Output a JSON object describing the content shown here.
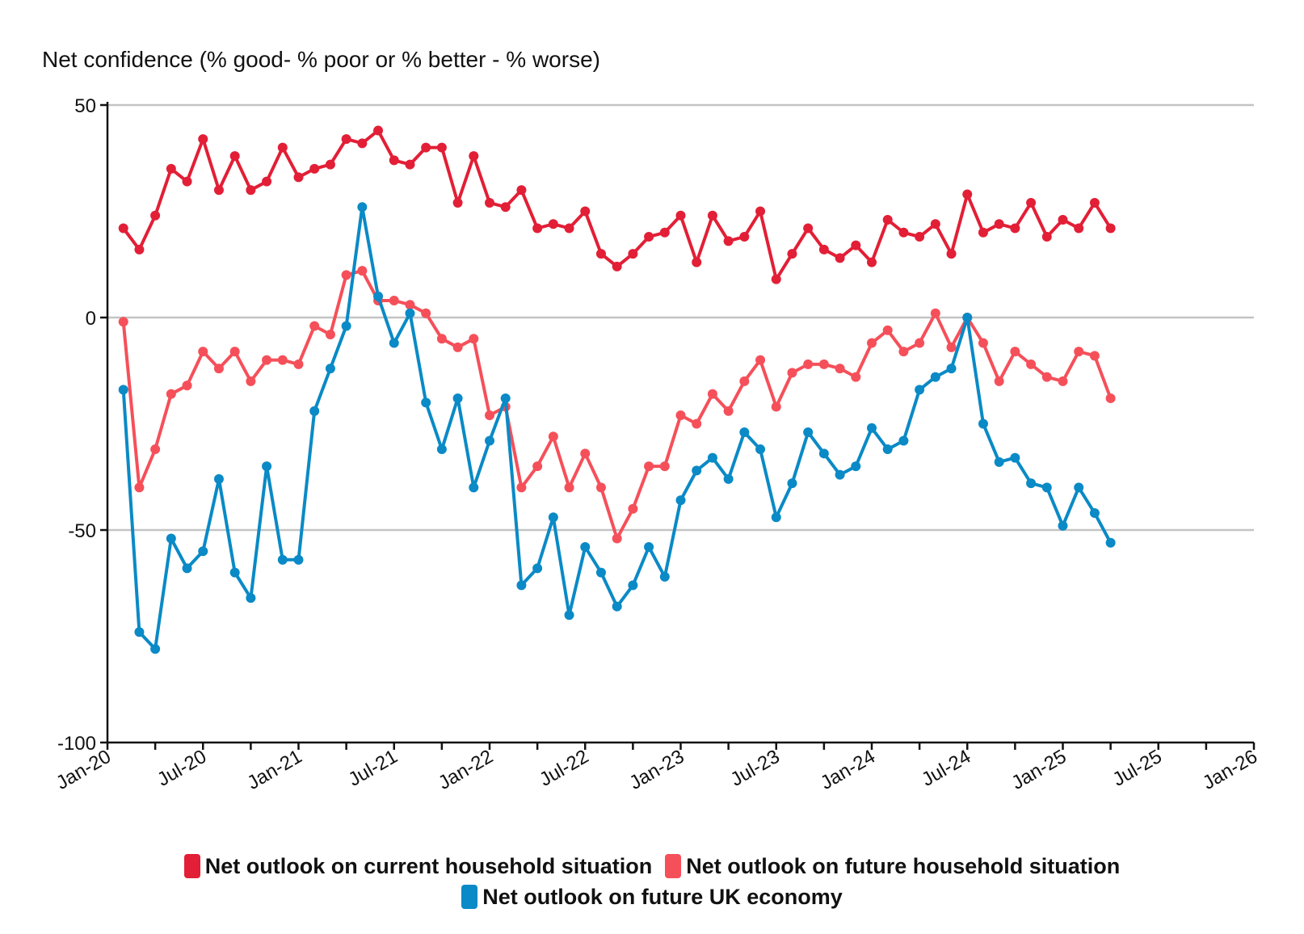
{
  "chart_data": {
    "type": "line",
    "title": "",
    "ylabel": "Net confidence (% good- % poor or % better - % worse)",
    "xlabel": "",
    "ylim": [
      -100,
      50
    ],
    "yticks": [
      50,
      0,
      -50,
      -100
    ],
    "xlim": [
      "2020-01",
      "2026-01"
    ],
    "xticks": [
      "Jan-20",
      "Jul-20",
      "Jan-21",
      "Jul-21",
      "Jan-22",
      "Jul-22",
      "Jan-23",
      "Jul-23",
      "Jan-24",
      "Jul-24",
      "Jan-25",
      "Jul-25",
      "Jan-26"
    ],
    "grid": "horizontal",
    "legend_position": "bottom",
    "x": [
      "2020-02",
      "2020-03",
      "2020-04",
      "2020-05",
      "2020-06",
      "2020-07",
      "2020-08",
      "2020-09",
      "2020-10",
      "2020-11",
      "2020-12",
      "2021-01",
      "2021-02",
      "2021-03",
      "2021-04",
      "2021-05",
      "2021-06",
      "2021-07",
      "2021-08",
      "2021-09",
      "2021-10",
      "2021-11",
      "2021-12",
      "2022-01",
      "2022-02",
      "2022-03",
      "2022-04",
      "2022-05",
      "2022-06",
      "2022-07",
      "2022-08",
      "2022-09",
      "2022-10",
      "2022-11",
      "2022-12",
      "2023-01",
      "2023-02",
      "2023-03",
      "2023-04",
      "2023-05",
      "2023-06",
      "2023-07",
      "2023-08",
      "2023-09",
      "2023-10",
      "2023-11",
      "2023-12",
      "2024-01",
      "2024-02",
      "2024-03",
      "2024-04",
      "2024-05",
      "2024-06",
      "2024-07",
      "2024-08",
      "2024-09",
      "2024-10",
      "2024-11",
      "2024-12",
      "2025-01",
      "2025-02",
      "2025-03",
      "2025-04"
    ],
    "series": [
      {
        "name": "Net outlook on current household situation",
        "color": "#e21f36",
        "values": [
          21,
          16,
          24,
          35,
          32,
          42,
          30,
          38,
          30,
          32,
          40,
          33,
          35,
          36,
          42,
          41,
          44,
          37,
          36,
          40,
          40,
          27,
          38,
          27,
          26,
          30,
          21,
          22,
          21,
          25,
          15,
          12,
          15,
          19,
          20,
          24,
          13,
          24,
          18,
          19,
          25,
          9,
          15,
          21,
          16,
          14,
          17,
          13,
          23,
          20,
          19,
          22,
          15,
          29,
          20,
          22,
          21,
          27,
          19,
          23,
          21,
          27,
          21
        ]
      },
      {
        "name": "Net outlook on future household situation",
        "color": "#f5505a",
        "values": [
          -1,
          -40,
          -31,
          -18,
          -16,
          -8,
          -12,
          -8,
          -15,
          -10,
          -10,
          -11,
          -2,
          -4,
          10,
          11,
          4,
          4,
          3,
          1,
          -5,
          -7,
          -5,
          -23,
          -21,
          -40,
          -35,
          -28,
          -40,
          -32,
          -40,
          -52,
          -45,
          -35,
          -35,
          -23,
          -25,
          -18,
          -22,
          -15,
          -10,
          -21,
          -13,
          -11,
          -11,
          -12,
          -14,
          -6,
          -3,
          -8,
          -6,
          1,
          -7,
          0,
          -6,
          -15,
          -8,
          -11,
          -14,
          -15,
          -8,
          -9,
          -19
        ]
      },
      {
        "name": "Net outlook on future UK economy",
        "color": "#0a8ac6",
        "values": [
          -17,
          -74,
          -78,
          -52,
          -59,
          -55,
          -38,
          -60,
          -66,
          -35,
          -57,
          -57,
          -22,
          -12,
          -2,
          26,
          5,
          -6,
          1,
          -20,
          -31,
          -19,
          -40,
          -29,
          -19,
          -63,
          -59,
          -47,
          -70,
          -54,
          -60,
          -68,
          -63,
          -54,
          -61,
          -43,
          -36,
          -33,
          -38,
          -27,
          -31,
          -47,
          -39,
          -27,
          -32,
          -37,
          -35,
          -26,
          -31,
          -29,
          -17,
          -14,
          -12,
          0,
          -25,
          -34,
          -33,
          -39,
          -40,
          -49,
          -40,
          -46,
          -53
        ]
      }
    ]
  }
}
